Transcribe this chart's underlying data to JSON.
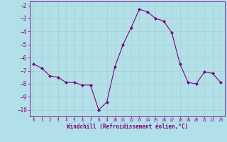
{
  "x": [
    0,
    1,
    2,
    3,
    4,
    5,
    6,
    7,
    8,
    9,
    10,
    11,
    12,
    13,
    14,
    15,
    16,
    17,
    18,
    19,
    20,
    21,
    22,
    23
  ],
  "y": [
    -6.5,
    -6.8,
    -7.4,
    -7.5,
    -7.9,
    -7.9,
    -8.1,
    -8.1,
    -10.0,
    -9.4,
    -6.7,
    -5.0,
    -3.7,
    -2.3,
    -2.5,
    -3.0,
    -3.2,
    -4.1,
    -6.5,
    -7.9,
    -8.0,
    -7.1,
    -7.2,
    -7.9
  ],
  "line_color": "#800080",
  "marker": "D",
  "marker_size": 2,
  "bg_color": "#b2e0e8",
  "grid_color": "#aacccc",
  "xlabel": "Windchill (Refroidissement éolien,°C)",
  "xlabel_color": "#800080",
  "tick_color": "#800080",
  "spine_color": "#800080",
  "ylim": [
    -10.5,
    -1.7
  ],
  "xlim": [
    -0.5,
    23.5
  ],
  "yticks": [
    -10,
    -9,
    -8,
    -7,
    -6,
    -5,
    -4,
    -3,
    -2
  ],
  "xticks": [
    0,
    1,
    2,
    3,
    4,
    5,
    6,
    7,
    8,
    9,
    10,
    11,
    12,
    13,
    14,
    15,
    16,
    17,
    18,
    19,
    20,
    21,
    22,
    23
  ],
  "figsize": [
    3.2,
    2.0
  ],
  "dpi": 100
}
